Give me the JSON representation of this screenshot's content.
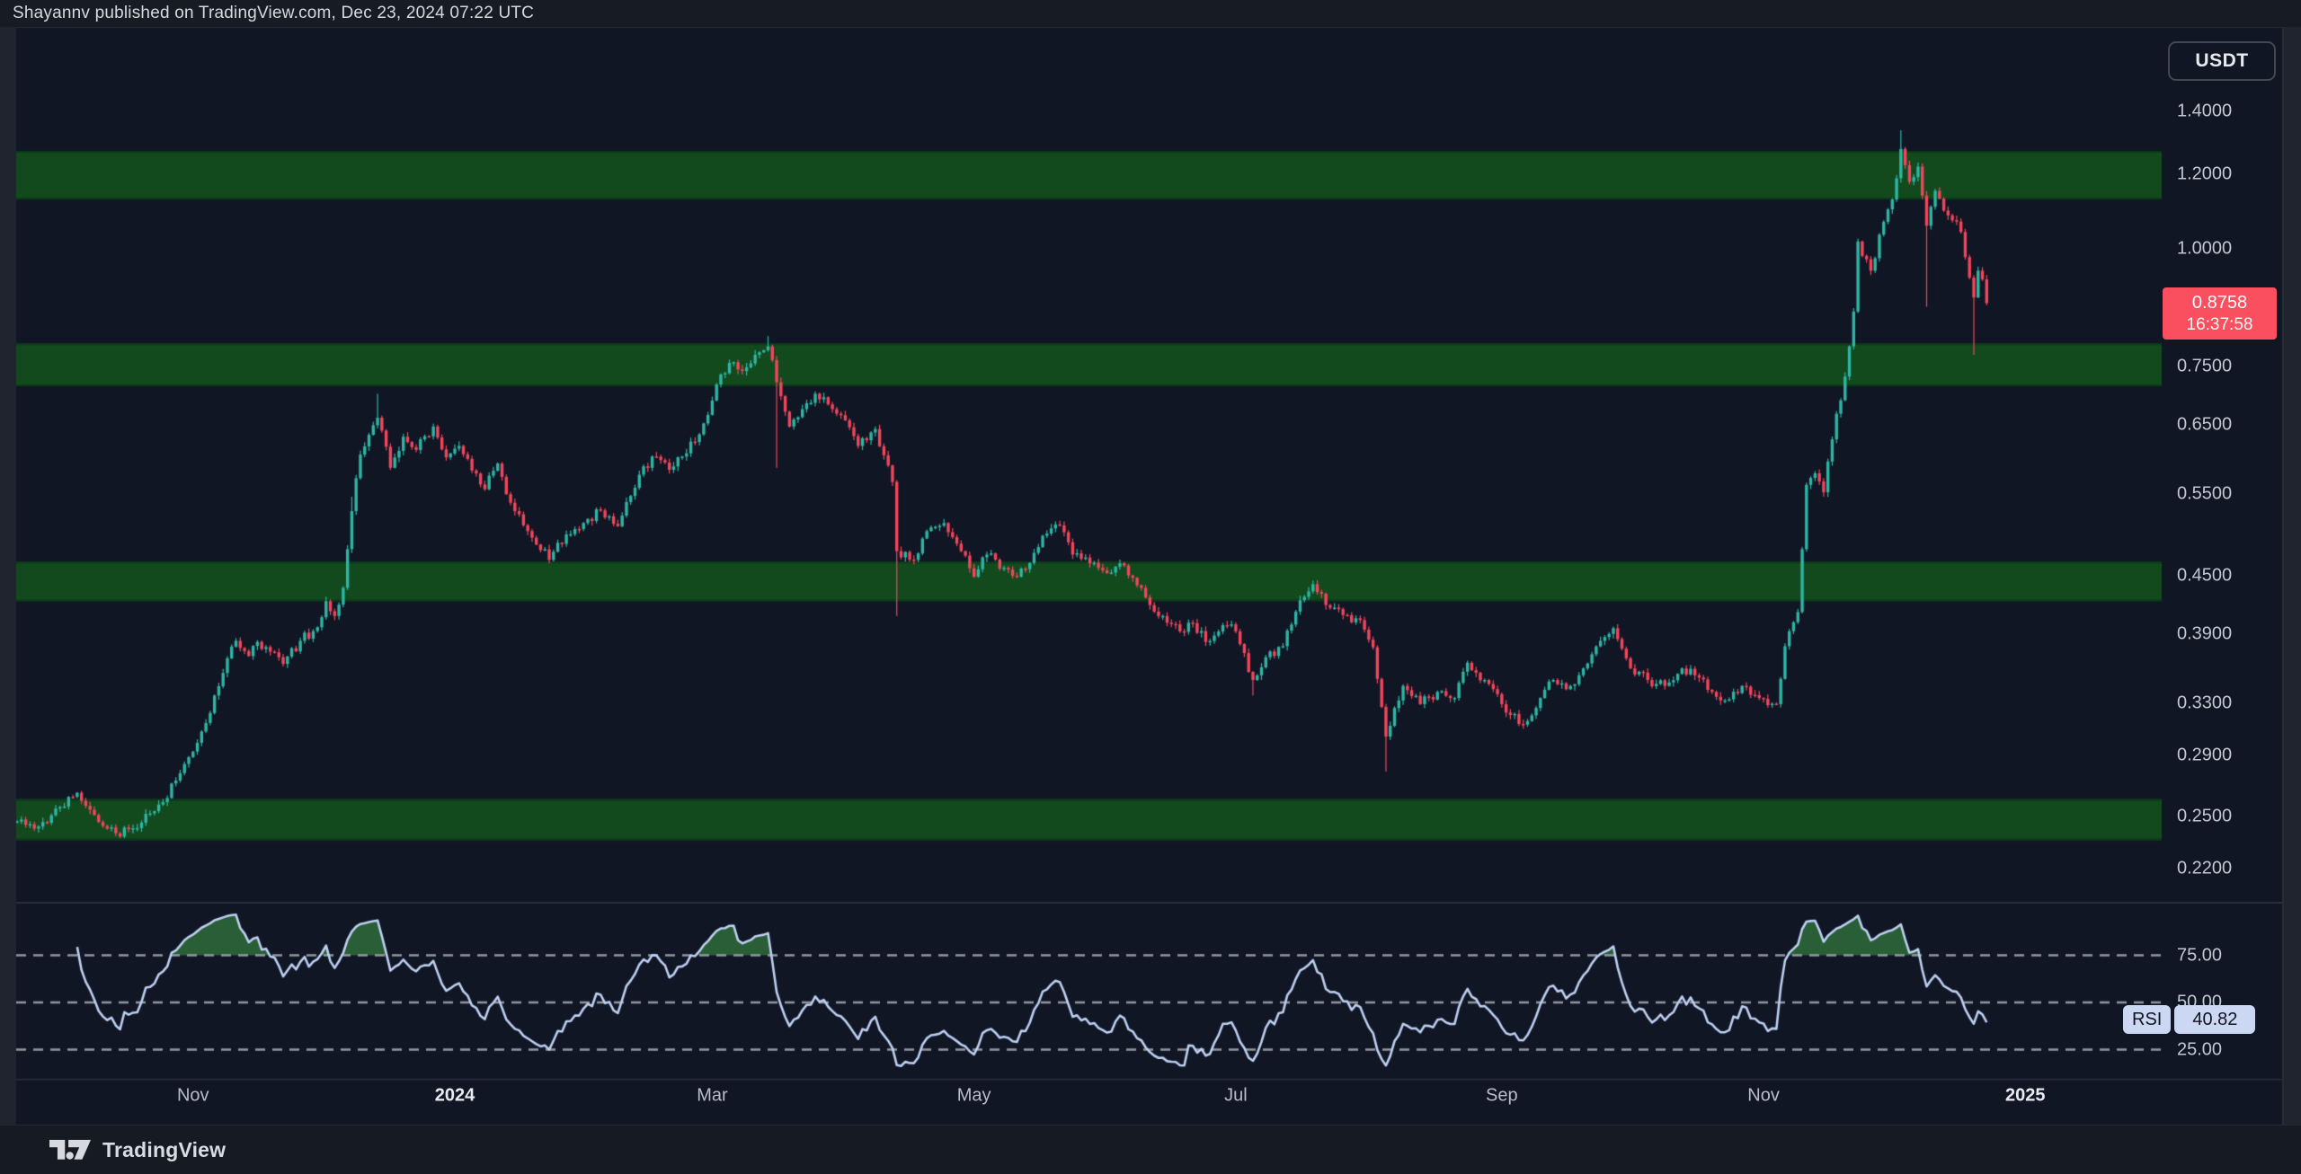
{
  "header": {
    "publish_text": "Shayannv published on TradingView.com, Dec 23, 2024 07:22 UTC"
  },
  "price_axis": {
    "symbol": "USDT",
    "ticks": [
      {
        "label": "1.4000",
        "value": 1.4
      },
      {
        "label": "1.2000",
        "value": 1.2
      },
      {
        "label": "1.0000",
        "value": 1.0
      },
      {
        "label": "0.7500",
        "value": 0.75
      },
      {
        "label": "0.6500",
        "value": 0.65
      },
      {
        "label": "0.5500",
        "value": 0.55
      },
      {
        "label": "0.4500",
        "value": 0.45
      },
      {
        "label": "0.3900",
        "value": 0.39
      },
      {
        "label": "0.3300",
        "value": 0.33
      },
      {
        "label": "0.2900",
        "value": 0.29
      },
      {
        "label": "0.2500",
        "value": 0.25
      },
      {
        "label": "0.2200",
        "value": 0.22
      }
    ]
  },
  "last_price": {
    "value": "0.8758",
    "countdown": "16:37:58",
    "price": 0.8758
  },
  "rsi_panel": {
    "name": "RSI",
    "value": "40.82",
    "last": 40.82,
    "ticks": [
      {
        "label": "75.00",
        "value": 75
      },
      {
        "label": "50.00",
        "value": 50
      },
      {
        "label": "25.00",
        "value": 25
      }
    ]
  },
  "time_axis": {
    "labels": [
      {
        "label": "Nov",
        "date": "2023-11-01",
        "bold": false
      },
      {
        "label": "2024",
        "date": "2024-01-01",
        "bold": true
      },
      {
        "label": "Mar",
        "date": "2024-03-01",
        "bold": false
      },
      {
        "label": "May",
        "date": "2024-05-01",
        "bold": false
      },
      {
        "label": "Jul",
        "date": "2024-07-01",
        "bold": false
      },
      {
        "label": "Sep",
        "date": "2024-09-01",
        "bold": false
      },
      {
        "label": "Nov",
        "date": "2024-11-01",
        "bold": false
      },
      {
        "label": "2025",
        "date": "2025-01-01",
        "bold": true
      }
    ]
  },
  "footer": {
    "brand": "TradingView"
  },
  "colors": {
    "candle_up": "#2eb5a4",
    "candle_down": "#f1465c",
    "last_price_bg": "#fa4f5e",
    "zone_green": "#124a1e",
    "zone_edge": "#0c3a18",
    "rsi_line": "#bdd0f2",
    "rsi_overbought_fill": "rgba(47,107,57,0.85)",
    "rsi_badge_bg": "#ccd7f3",
    "dashed_level": "rgba(154,158,167,0.95)"
  },
  "chart_data": {
    "type": "candlestick",
    "quote_currency": "USDT",
    "price_scale": "log",
    "interval": "1D",
    "last_close": 0.8758,
    "support_resistance_zones": [
      {
        "top": 1.27,
        "bottom": 1.128
      },
      {
        "top": 0.794,
        "bottom": 0.715
      },
      {
        "top": 0.466,
        "bottom": 0.423
      },
      {
        "top": 0.261,
        "bottom": 0.236
      }
    ],
    "rsi": {
      "period": 14,
      "levels": [
        75,
        50,
        25
      ],
      "last": 40.82
    },
    "anchors": [
      {
        "d": "2023-09-21",
        "c": 0.247
      },
      {
        "d": "2023-09-26",
        "c": 0.244
      },
      {
        "d": "2023-10-01",
        "c": 0.256
      },
      {
        "d": "2023-10-05",
        "c": 0.265
      },
      {
        "d": "2023-10-09",
        "c": 0.251
      },
      {
        "d": "2023-10-14",
        "c": 0.24
      },
      {
        "d": "2023-10-18",
        "c": 0.243
      },
      {
        "d": "2023-10-22",
        "c": 0.252
      },
      {
        "d": "2023-10-25",
        "c": 0.259
      },
      {
        "d": "2023-10-29",
        "c": 0.278
      },
      {
        "d": "2023-11-01",
        "c": 0.293
      },
      {
        "d": "2023-11-05",
        "c": 0.322
      },
      {
        "d": "2023-11-09",
        "c": 0.368
      },
      {
        "d": "2023-11-11",
        "c": 0.384
      },
      {
        "d": "2023-11-14",
        "c": 0.37
      },
      {
        "d": "2023-11-16",
        "c": 0.383
      },
      {
        "d": "2023-11-19",
        "c": 0.374
      },
      {
        "d": "2023-11-22",
        "c": 0.363
      },
      {
        "d": "2023-11-26",
        "c": 0.384
      },
      {
        "d": "2023-11-30",
        "c": 0.397
      },
      {
        "d": "2023-12-02",
        "c": 0.423
      },
      {
        "d": "2023-12-04",
        "c": 0.408
      },
      {
        "d": "2023-12-06",
        "c": 0.437
      },
      {
        "d": "2023-12-08",
        "c": 0.527,
        "h": 0.546
      },
      {
        "d": "2023-12-10",
        "c": 0.605
      },
      {
        "d": "2023-12-12",
        "c": 0.635
      },
      {
        "d": "2023-12-14",
        "c": 0.662,
        "h": 0.702
      },
      {
        "d": "2023-12-17",
        "c": 0.586
      },
      {
        "d": "2023-12-20",
        "c": 0.632
      },
      {
        "d": "2023-12-23",
        "c": 0.612
      },
      {
        "d": "2023-12-27",
        "c": 0.648
      },
      {
        "d": "2023-12-30",
        "c": 0.601
      },
      {
        "d": "2024-01-02",
        "c": 0.618
      },
      {
        "d": "2024-01-05",
        "c": 0.582
      },
      {
        "d": "2024-01-08",
        "c": 0.556
      },
      {
        "d": "2024-01-11",
        "c": 0.592
      },
      {
        "d": "2024-01-14",
        "c": 0.538
      },
      {
        "d": "2024-01-18",
        "c": 0.502
      },
      {
        "d": "2024-01-23",
        "c": 0.468
      },
      {
        "d": "2024-01-27",
        "c": 0.498
      },
      {
        "d": "2024-01-31",
        "c": 0.512
      },
      {
        "d": "2024-02-04",
        "c": 0.528
      },
      {
        "d": "2024-02-08",
        "c": 0.508
      },
      {
        "d": "2024-02-11",
        "c": 0.547
      },
      {
        "d": "2024-02-14",
        "c": 0.588
      },
      {
        "d": "2024-02-17",
        "c": 0.602
      },
      {
        "d": "2024-02-20",
        "c": 0.583
      },
      {
        "d": "2024-02-24",
        "c": 0.607
      },
      {
        "d": "2024-02-28",
        "c": 0.653
      },
      {
        "d": "2024-03-02",
        "c": 0.718
      },
      {
        "d": "2024-03-05",
        "c": 0.757
      },
      {
        "d": "2024-03-08",
        "c": 0.742
      },
      {
        "d": "2024-03-11",
        "c": 0.772
      },
      {
        "d": "2024-03-14",
        "c": 0.788,
        "h": 0.808
      },
      {
        "d": "2024-03-16",
        "c": 0.722,
        "l": 0.586
      },
      {
        "d": "2024-03-19",
        "c": 0.648
      },
      {
        "d": "2024-03-22",
        "c": 0.676
      },
      {
        "d": "2024-03-25",
        "c": 0.702
      },
      {
        "d": "2024-03-28",
        "c": 0.684
      },
      {
        "d": "2024-04-01",
        "c": 0.658
      },
      {
        "d": "2024-04-04",
        "c": 0.618
      },
      {
        "d": "2024-04-08",
        "c": 0.644
      },
      {
        "d": "2024-04-12",
        "c": 0.566
      },
      {
        "d": "2024-04-13",
        "c": 0.478,
        "l": 0.408
      },
      {
        "d": "2024-04-17",
        "c": 0.468
      },
      {
        "d": "2024-04-20",
        "c": 0.502
      },
      {
        "d": "2024-04-24",
        "c": 0.512
      },
      {
        "d": "2024-04-28",
        "c": 0.478
      },
      {
        "d": "2024-05-01",
        "c": 0.449
      },
      {
        "d": "2024-05-04",
        "c": 0.474
      },
      {
        "d": "2024-05-08",
        "c": 0.459
      },
      {
        "d": "2024-05-11",
        "c": 0.449
      },
      {
        "d": "2024-05-15",
        "c": 0.476
      },
      {
        "d": "2024-05-18",
        "c": 0.499
      },
      {
        "d": "2024-05-21",
        "c": 0.509
      },
      {
        "d": "2024-05-24",
        "c": 0.474
      },
      {
        "d": "2024-05-28",
        "c": 0.464
      },
      {
        "d": "2024-06-01",
        "c": 0.453
      },
      {
        "d": "2024-06-04",
        "c": 0.464
      },
      {
        "d": "2024-06-07",
        "c": 0.448
      },
      {
        "d": "2024-06-11",
        "c": 0.419
      },
      {
        "d": "2024-06-14",
        "c": 0.408
      },
      {
        "d": "2024-06-18",
        "c": 0.393
      },
      {
        "d": "2024-06-21",
        "c": 0.401
      },
      {
        "d": "2024-06-24",
        "c": 0.383
      },
      {
        "d": "2024-06-28",
        "c": 0.399
      },
      {
        "d": "2024-07-01",
        "c": 0.393
      },
      {
        "d": "2024-07-05",
        "c": 0.349,
        "l": 0.336
      },
      {
        "d": "2024-07-08",
        "c": 0.369
      },
      {
        "d": "2024-07-12",
        "c": 0.379
      },
      {
        "d": "2024-07-16",
        "c": 0.424
      },
      {
        "d": "2024-07-19",
        "c": 0.441
      },
      {
        "d": "2024-07-22",
        "c": 0.419
      },
      {
        "d": "2024-07-26",
        "c": 0.409
      },
      {
        "d": "2024-07-30",
        "c": 0.404
      },
      {
        "d": "2024-08-02",
        "c": 0.378
      },
      {
        "d": "2024-08-05",
        "c": 0.304,
        "l": 0.279
      },
      {
        "d": "2024-08-09",
        "c": 0.344
      },
      {
        "d": "2024-08-13",
        "c": 0.329
      },
      {
        "d": "2024-08-17",
        "c": 0.339
      },
      {
        "d": "2024-08-21",
        "c": 0.334
      },
      {
        "d": "2024-08-24",
        "c": 0.364
      },
      {
        "d": "2024-08-28",
        "c": 0.349
      },
      {
        "d": "2024-09-01",
        "c": 0.329
      },
      {
        "d": "2024-09-06",
        "c": 0.313
      },
      {
        "d": "2024-09-10",
        "c": 0.334
      },
      {
        "d": "2024-09-13",
        "c": 0.349
      },
      {
        "d": "2024-09-17",
        "c": 0.344
      },
      {
        "d": "2024-09-20",
        "c": 0.359
      },
      {
        "d": "2024-09-24",
        "c": 0.384
      },
      {
        "d": "2024-09-27",
        "c": 0.396
      },
      {
        "d": "2024-10-01",
        "c": 0.359
      },
      {
        "d": "2024-10-05",
        "c": 0.349
      },
      {
        "d": "2024-10-09",
        "c": 0.344
      },
      {
        "d": "2024-10-13",
        "c": 0.359
      },
      {
        "d": "2024-10-16",
        "c": 0.353
      },
      {
        "d": "2024-10-20",
        "c": 0.339
      },
      {
        "d": "2024-10-23",
        "c": 0.332
      },
      {
        "d": "2024-10-27",
        "c": 0.344
      },
      {
        "d": "2024-10-31",
        "c": 0.334
      },
      {
        "d": "2024-11-04",
        "c": 0.329
      },
      {
        "d": "2024-11-06",
        "c": 0.379
      },
      {
        "d": "2024-11-09",
        "c": 0.412
      },
      {
        "d": "2024-11-11",
        "c": 0.562
      },
      {
        "d": "2024-11-13",
        "c": 0.578
      },
      {
        "d": "2024-11-15",
        "c": 0.552
      },
      {
        "d": "2024-11-17",
        "c": 0.628
      },
      {
        "d": "2024-11-20",
        "c": 0.732
      },
      {
        "d": "2024-11-22",
        "c": 0.858
      },
      {
        "d": "2024-11-23",
        "c": 1.018
      },
      {
        "d": "2024-11-26",
        "c": 0.948
      },
      {
        "d": "2024-11-29",
        "c": 1.068
      },
      {
        "d": "2024-12-01",
        "c": 1.128
      },
      {
        "d": "2024-12-03",
        "c": 1.276,
        "h": 1.336
      },
      {
        "d": "2024-12-05",
        "c": 1.178
      },
      {
        "d": "2024-12-07",
        "c": 1.222
      },
      {
        "d": "2024-12-09",
        "c": 1.058,
        "l": 0.868
      },
      {
        "d": "2024-12-11",
        "c": 1.152
      },
      {
        "d": "2024-12-13",
        "c": 1.098
      },
      {
        "d": "2024-12-15",
        "c": 1.072
      },
      {
        "d": "2024-12-17",
        "c": 1.042
      },
      {
        "d": "2024-12-19",
        "c": 0.932
      },
      {
        "d": "2024-12-20",
        "c": 0.888,
        "l": 0.772
      },
      {
        "d": "2024-12-21",
        "c": 0.948
      },
      {
        "d": "2024-12-22",
        "c": 0.928
      },
      {
        "d": "2024-12-23",
        "c": 0.8758
      }
    ]
  }
}
